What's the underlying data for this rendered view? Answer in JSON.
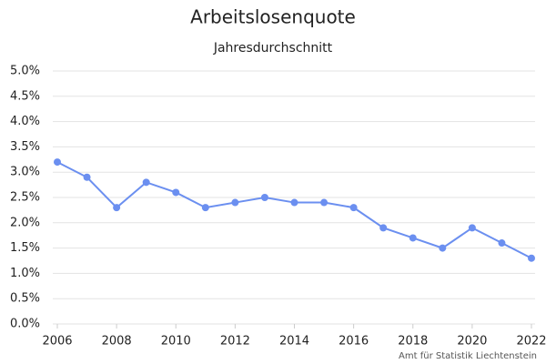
{
  "chart_data": {
    "type": "line",
    "title": "Arbeitslosenquote",
    "subtitle": "Jahresdurchschnitt",
    "source": "Amt für Statistik Liechtenstein",
    "x": [
      2006,
      2007,
      2008,
      2009,
      2010,
      2011,
      2012,
      2013,
      2014,
      2015,
      2016,
      2017,
      2018,
      2019,
      2020,
      2021,
      2022
    ],
    "series": [
      {
        "name": "Arbeitslosenquote",
        "color": "#6b8ff0",
        "values": [
          3.2,
          2.9,
          2.3,
          2.8,
          2.6,
          2.3,
          2.4,
          2.5,
          2.4,
          2.4,
          2.3,
          1.9,
          1.7,
          1.5,
          1.9,
          1.6,
          1.3
        ]
      }
    ],
    "xlim": [
      2006,
      2022
    ],
    "xticks": [
      2006,
      2008,
      2010,
      2012,
      2014,
      2016,
      2018,
      2020,
      2022
    ],
    "ylim": [
      0,
      5
    ],
    "yticks": [
      {
        "value": 0,
        "label": "0.0%"
      },
      {
        "value": 0.5,
        "label": "0.5%"
      },
      {
        "value": 1,
        "label": "1.0%"
      },
      {
        "value": 1.5,
        "label": "1.5%"
      },
      {
        "value": 2,
        "label": "2.0%"
      },
      {
        "value": 2.5,
        "label": "2.5%"
      },
      {
        "value": 3,
        "label": "3.0%"
      },
      {
        "value": 3.5,
        "label": "3.5%"
      },
      {
        "value": 4,
        "label": "4.0%"
      },
      {
        "value": 4.5,
        "label": "4.5%"
      },
      {
        "value": 5,
        "label": "5.0%"
      }
    ],
    "grid": true
  }
}
